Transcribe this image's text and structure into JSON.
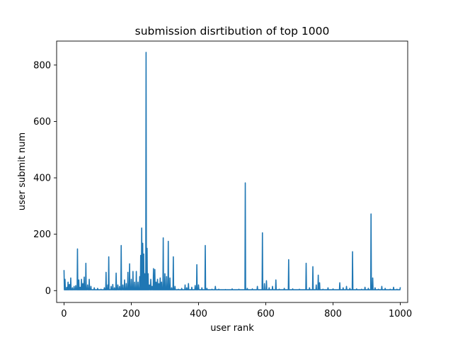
{
  "chart_data": {
    "type": "line",
    "title": "submission disrtibution of top 1000",
    "xlabel": "user rank",
    "ylabel": "user submit num",
    "xlim": [
      -22,
      1022
    ],
    "ylim": [
      -42,
      885
    ],
    "xticks": [
      0,
      200,
      400,
      600,
      800,
      1000
    ],
    "yticks": [
      0,
      200,
      400,
      600,
      800
    ],
    "grid": false,
    "series_color": "#1f77b4",
    "baseline": 3,
    "spikes": [
      {
        "x": 0,
        "y": 73
      },
      {
        "x": 3,
        "y": 40
      },
      {
        "x": 8,
        "y": 12
      },
      {
        "x": 12,
        "y": 30
      },
      {
        "x": 16,
        "y": 22
      },
      {
        "x": 20,
        "y": 45
      },
      {
        "x": 25,
        "y": 10
      },
      {
        "x": 30,
        "y": 15
      },
      {
        "x": 35,
        "y": 18
      },
      {
        "x": 40,
        "y": 148
      },
      {
        "x": 44,
        "y": 38
      },
      {
        "x": 48,
        "y": 12
      },
      {
        "x": 52,
        "y": 40
      },
      {
        "x": 56,
        "y": 25
      },
      {
        "x": 60,
        "y": 48
      },
      {
        "x": 65,
        "y": 97
      },
      {
        "x": 70,
        "y": 20
      },
      {
        "x": 75,
        "y": 40
      },
      {
        "x": 80,
        "y": 15
      },
      {
        "x": 90,
        "y": 10
      },
      {
        "x": 100,
        "y": 8
      },
      {
        "x": 110,
        "y": 5
      },
      {
        "x": 120,
        "y": 10
      },
      {
        "x": 125,
        "y": 65
      },
      {
        "x": 130,
        "y": 20
      },
      {
        "x": 133,
        "y": 120
      },
      {
        "x": 140,
        "y": 15
      },
      {
        "x": 145,
        "y": 22
      },
      {
        "x": 150,
        "y": 10
      },
      {
        "x": 155,
        "y": 62
      },
      {
        "x": 160,
        "y": 20
      },
      {
        "x": 165,
        "y": 15
      },
      {
        "x": 170,
        "y": 160
      },
      {
        "x": 175,
        "y": 20
      },
      {
        "x": 180,
        "y": 38
      },
      {
        "x": 185,
        "y": 25
      },
      {
        "x": 190,
        "y": 65
      },
      {
        "x": 195,
        "y": 95
      },
      {
        "x": 200,
        "y": 40
      },
      {
        "x": 205,
        "y": 68
      },
      {
        "x": 210,
        "y": 30
      },
      {
        "x": 215,
        "y": 68
      },
      {
        "x": 220,
        "y": 30
      },
      {
        "x": 225,
        "y": 50
      },
      {
        "x": 228,
        "y": 125
      },
      {
        "x": 231,
        "y": 222
      },
      {
        "x": 234,
        "y": 168
      },
      {
        "x": 237,
        "y": 130
      },
      {
        "x": 240,
        "y": 60
      },
      {
        "x": 244,
        "y": 845
      },
      {
        "x": 247,
        "y": 150
      },
      {
        "x": 250,
        "y": 60
      },
      {
        "x": 254,
        "y": 20
      },
      {
        "x": 258,
        "y": 40
      },
      {
        "x": 262,
        "y": 15
      },
      {
        "x": 266,
        "y": 78
      },
      {
        "x": 270,
        "y": 75
      },
      {
        "x": 274,
        "y": 30
      },
      {
        "x": 278,
        "y": 40
      },
      {
        "x": 282,
        "y": 25
      },
      {
        "x": 286,
        "y": 45
      },
      {
        "x": 290,
        "y": 30
      },
      {
        "x": 295,
        "y": 187
      },
      {
        "x": 300,
        "y": 60
      },
      {
        "x": 305,
        "y": 50
      },
      {
        "x": 310,
        "y": 175
      },
      {
        "x": 315,
        "y": 45
      },
      {
        "x": 320,
        "y": 10
      },
      {
        "x": 325,
        "y": 120
      },
      {
        "x": 330,
        "y": 15
      },
      {
        "x": 340,
        "y": 5
      },
      {
        "x": 350,
        "y": 8
      },
      {
        "x": 360,
        "y": 20
      },
      {
        "x": 365,
        "y": 10
      },
      {
        "x": 370,
        "y": 25
      },
      {
        "x": 380,
        "y": 12
      },
      {
        "x": 390,
        "y": 18
      },
      {
        "x": 395,
        "y": 92
      },
      {
        "x": 400,
        "y": 20
      },
      {
        "x": 410,
        "y": 10
      },
      {
        "x": 420,
        "y": 160
      },
      {
        "x": 425,
        "y": 8
      },
      {
        "x": 440,
        "y": 5
      },
      {
        "x": 450,
        "y": 15
      },
      {
        "x": 460,
        "y": 5
      },
      {
        "x": 480,
        "y": 4
      },
      {
        "x": 500,
        "y": 6
      },
      {
        "x": 520,
        "y": 5
      },
      {
        "x": 539,
        "y": 382
      },
      {
        "x": 545,
        "y": 8
      },
      {
        "x": 560,
        "y": 6
      },
      {
        "x": 575,
        "y": 15
      },
      {
        "x": 590,
        "y": 205
      },
      {
        "x": 596,
        "y": 25
      },
      {
        "x": 602,
        "y": 35
      },
      {
        "x": 610,
        "y": 10
      },
      {
        "x": 620,
        "y": 15
      },
      {
        "x": 630,
        "y": 38
      },
      {
        "x": 640,
        "y": 5
      },
      {
        "x": 655,
        "y": 8
      },
      {
        "x": 668,
        "y": 110
      },
      {
        "x": 680,
        "y": 6
      },
      {
        "x": 700,
        "y": 5
      },
      {
        "x": 720,
        "y": 97
      },
      {
        "x": 730,
        "y": 10
      },
      {
        "x": 740,
        "y": 85
      },
      {
        "x": 750,
        "y": 20
      },
      {
        "x": 756,
        "y": 55
      },
      {
        "x": 760,
        "y": 28
      },
      {
        "x": 770,
        "y": 5
      },
      {
        "x": 785,
        "y": 10
      },
      {
        "x": 800,
        "y": 6
      },
      {
        "x": 820,
        "y": 28
      },
      {
        "x": 830,
        "y": 10
      },
      {
        "x": 840,
        "y": 15
      },
      {
        "x": 850,
        "y": 8
      },
      {
        "x": 858,
        "y": 138
      },
      {
        "x": 870,
        "y": 6
      },
      {
        "x": 885,
        "y": 5
      },
      {
        "x": 895,
        "y": 12
      },
      {
        "x": 905,
        "y": 8
      },
      {
        "x": 913,
        "y": 272
      },
      {
        "x": 918,
        "y": 45
      },
      {
        "x": 925,
        "y": 10
      },
      {
        "x": 935,
        "y": 5
      },
      {
        "x": 945,
        "y": 15
      },
      {
        "x": 955,
        "y": 8
      },
      {
        "x": 970,
        "y": 5
      },
      {
        "x": 980,
        "y": 12
      },
      {
        "x": 990,
        "y": 5
      },
      {
        "x": 1000,
        "y": 12
      }
    ]
  }
}
